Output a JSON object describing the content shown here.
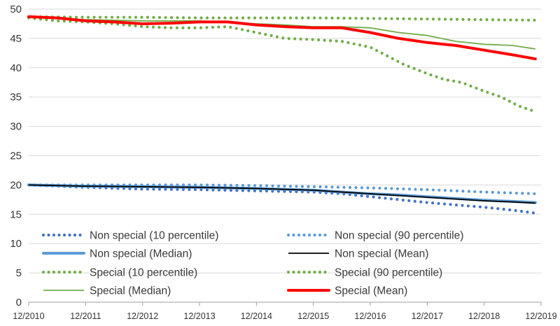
{
  "chart_data": {
    "type": "line",
    "title": "",
    "xlabel": "",
    "ylabel": "",
    "ylim": [
      0,
      50
    ],
    "y_ticks": [
      0,
      5,
      10,
      15,
      20,
      25,
      30,
      35,
      40,
      45,
      50
    ],
    "x_ticks": [
      "12/2010",
      "12/2011",
      "12/2012",
      "12/2013",
      "12/2014",
      "12/2015",
      "12/2016",
      "12/2017",
      "12/2018",
      "12/2019"
    ],
    "grid": "horizontal",
    "legend_placement": "bottom-inside",
    "series": [
      {
        "name": "Non special (10 percentile)",
        "style": "dotted",
        "color": "#4472C4",
        "x": [
          0,
          1,
          2,
          3,
          4,
          5,
          5.5,
          6,
          6.5,
          7,
          7.5,
          8,
          8.5,
          8.9
        ],
        "values": [
          20.0,
          19.6,
          19.3,
          19.2,
          19.0,
          18.8,
          18.5,
          18.0,
          17.5,
          17.0,
          16.6,
          16.2,
          15.7,
          15.2
        ]
      },
      {
        "name": "Non special (90 percentile)",
        "style": "dotted",
        "color": "#5B9BD5",
        "x": [
          0,
          1,
          2,
          3,
          4,
          5,
          6,
          7,
          8,
          8.9
        ],
        "values": [
          20.0,
          20.0,
          20.0,
          20.0,
          19.9,
          19.7,
          19.5,
          19.2,
          18.8,
          18.5
        ]
      },
      {
        "name": "Non special (Median)",
        "style": "thick",
        "color": "#5B9BD5",
        "x": [
          0,
          1,
          2,
          3,
          4,
          5,
          5.5,
          6,
          6.5,
          7,
          7.5,
          8,
          8.5,
          8.9
        ],
        "values": [
          20.0,
          19.8,
          19.7,
          19.6,
          19.4,
          19.1,
          18.8,
          18.5,
          18.3,
          18.0,
          17.7,
          17.4,
          17.2,
          17.0
        ]
      },
      {
        "name": "Non special (Mean)",
        "style": "thin",
        "color": "#000000",
        "x": [
          0,
          1,
          2,
          3,
          4,
          5,
          5.5,
          6,
          6.5,
          7,
          7.5,
          8,
          8.5,
          8.9
        ],
        "values": [
          20.0,
          19.8,
          19.7,
          19.6,
          19.4,
          19.1,
          18.8,
          18.5,
          18.2,
          17.9,
          17.6,
          17.3,
          17.1,
          16.9
        ]
      },
      {
        "name": "Special (10 percentile)",
        "style": "dotted",
        "color": "#70AD47",
        "x": [
          0,
          0.5,
          1,
          1.5,
          2,
          2.5,
          3,
          3.5,
          4,
          4.5,
          5,
          5.5,
          6,
          6.3,
          6.6,
          7,
          7.3,
          7.6,
          8,
          8.3,
          8.6,
          8.9
        ],
        "values": [
          48.5,
          48.0,
          47.8,
          47.5,
          47.0,
          46.8,
          46.8,
          47.0,
          46.0,
          45.0,
          44.8,
          44.5,
          43.5,
          42.0,
          40.5,
          39.0,
          38.0,
          37.5,
          36.0,
          35.0,
          33.5,
          32.5
        ]
      },
      {
        "name": "Special (90 percentile)",
        "style": "dotted",
        "color": "#70AD47",
        "x": [
          0,
          1,
          2,
          3,
          4,
          5,
          6,
          7,
          8,
          8.9
        ],
        "values": [
          48.7,
          48.6,
          48.6,
          48.5,
          48.5,
          48.5,
          48.4,
          48.3,
          48.2,
          48.1
        ]
      },
      {
        "name": "Special (Median)",
        "style": "thin",
        "color": "#70AD47",
        "x": [
          0,
          1,
          2,
          3,
          4,
          4.5,
          5,
          5.5,
          6,
          6.5,
          7,
          7.5,
          8,
          8.5,
          8.9
        ],
        "values": [
          48.6,
          48.2,
          48.0,
          48.0,
          47.5,
          47.3,
          47.0,
          47.0,
          46.8,
          46.0,
          45.5,
          44.5,
          44.0,
          43.8,
          43.2
        ]
      },
      {
        "name": "Special (Mean)",
        "style": "thick",
        "color": "#FF0000",
        "x": [
          0,
          0.5,
          1,
          1.5,
          2,
          2.5,
          3,
          3.5,
          4,
          4.5,
          5,
          5.5,
          6,
          6.5,
          7,
          7.5,
          8,
          8.5,
          8.9
        ],
        "values": [
          48.7,
          48.5,
          48.0,
          47.8,
          47.5,
          47.6,
          47.8,
          47.8,
          47.3,
          47.0,
          46.8,
          46.8,
          46.0,
          45.0,
          44.3,
          43.8,
          43.0,
          42.2,
          41.5
        ]
      }
    ]
  },
  "colors": {
    "grid": "#D9D9D9",
    "axis": "#9E9E9E"
  }
}
